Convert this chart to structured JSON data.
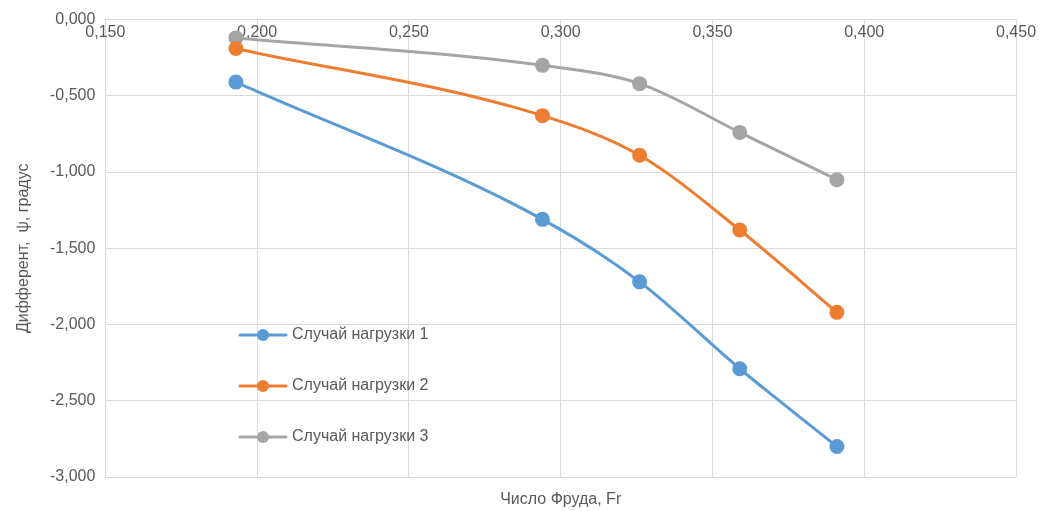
{
  "chart_data": {
    "type": "line",
    "xlabel": "Число Фруда, Fr",
    "ylabel": "Дифферент,  ψ, градус",
    "x": [
      0.193,
      0.294,
      0.326,
      0.359,
      0.391
    ],
    "series": [
      {
        "name": "Случай нагрузки 1",
        "color": "#5b9bd5",
        "values": [
          -0.41,
          -1.31,
          -1.72,
          -2.29,
          -2.8
        ]
      },
      {
        "name": "Случай нагрузки 2",
        "color": "#ed7d31",
        "values": [
          -0.19,
          -0.63,
          -0.89,
          -1.38,
          -1.92
        ]
      },
      {
        "name": "Случай нагрузки 3",
        "color": "#a5a5a5",
        "values": [
          -0.12,
          -0.3,
          -0.42,
          -0.74,
          -1.05
        ]
      }
    ],
    "xlim": [
      0.15,
      0.45
    ],
    "xticks": [
      {
        "value": 0.15,
        "label": "0,150"
      },
      {
        "value": 0.2,
        "label": "0,200"
      },
      {
        "value": 0.25,
        "label": "0,250"
      },
      {
        "value": 0.3,
        "label": "0,300"
      },
      {
        "value": 0.35,
        "label": "0,350"
      },
      {
        "value": 0.4,
        "label": "0,400"
      },
      {
        "value": 0.45,
        "label": "0,450"
      }
    ],
    "ylim": [
      -3,
      0
    ],
    "yticks": [
      {
        "value": -3,
        "label": "-3,000"
      },
      {
        "value": -2.5,
        "label": "-2,500"
      },
      {
        "value": -2,
        "label": "-2,000"
      },
      {
        "value": -1.5,
        "label": "-1,500"
      },
      {
        "value": -1,
        "label": "-1,000"
      },
      {
        "value": -0.5,
        "label": "-0,500"
      },
      {
        "value": 0,
        "label": "0,000"
      }
    ],
    "grid": true,
    "legend": "bottom left",
    "marker": "circle",
    "line_style": "solid"
  }
}
